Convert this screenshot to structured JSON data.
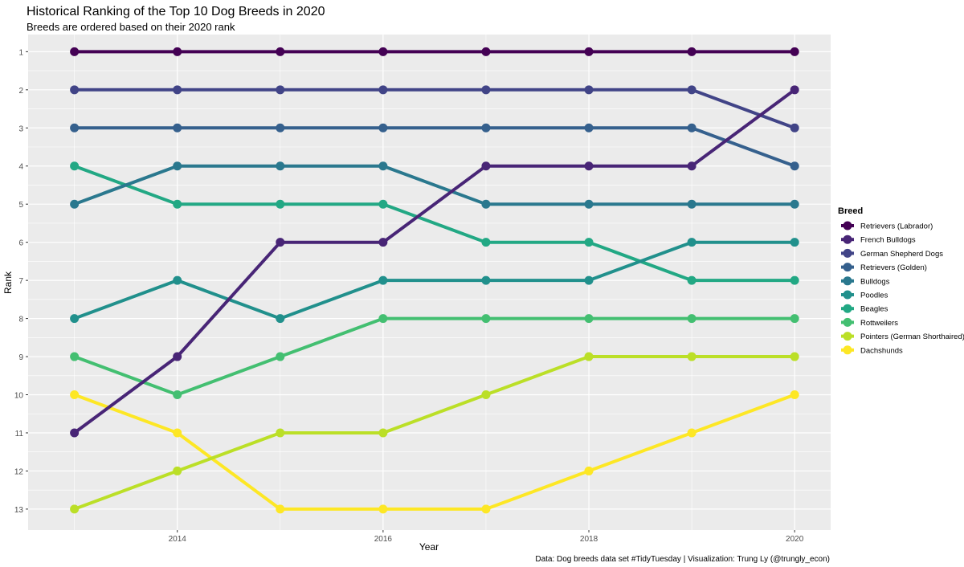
{
  "chart_data": {
    "type": "line",
    "title": "Historical Ranking of the Top 10 Dog Breeds in 2020",
    "subtitle": "Breeds are ordered based on their 2020 rank",
    "xlabel": "Year",
    "ylabel": "Rank",
    "caption": "Data: Dog breeds data set #TidyTuesday | Visualization: Trung Ly (@trungly_econ)",
    "x": [
      2013,
      2014,
      2015,
      2016,
      2017,
      2018,
      2019,
      2020
    ],
    "x_ticks": [
      "2014",
      "2016",
      "2018",
      "2020"
    ],
    "y_ticks": [
      "1",
      "2",
      "3",
      "4",
      "5",
      "6",
      "7",
      "8",
      "9",
      "10",
      "11",
      "12",
      "13"
    ],
    "xlim": [
      2012.55,
      2020.35
    ],
    "ylim": [
      13.55,
      0.55
    ],
    "y_reversed": true,
    "grid": true,
    "legend_title": "Breed",
    "legend_position": "right",
    "series": [
      {
        "name": "Retrievers (Labrador)",
        "color": "#440154",
        "values": [
          1,
          1,
          1,
          1,
          1,
          1,
          1,
          1
        ]
      },
      {
        "name": "French Bulldogs",
        "color": "#482576",
        "values": [
          11,
          9,
          6,
          6,
          4,
          4,
          4,
          2
        ]
      },
      {
        "name": "German Shepherd Dogs",
        "color": "#414487",
        "values": [
          2,
          2,
          2,
          2,
          2,
          2,
          2,
          3
        ]
      },
      {
        "name": "Retrievers (Golden)",
        "color": "#35608D",
        "values": [
          3,
          3,
          3,
          3,
          3,
          3,
          3,
          4
        ]
      },
      {
        "name": "Bulldogs",
        "color": "#2A788E",
        "values": [
          5,
          4,
          4,
          4,
          5,
          5,
          5,
          5
        ]
      },
      {
        "name": "Poodles",
        "color": "#21908C",
        "values": [
          8,
          7,
          8,
          7,
          7,
          7,
          6,
          6
        ]
      },
      {
        "name": "Beagles",
        "color": "#22A884",
        "values": [
          4,
          5,
          5,
          5,
          6,
          6,
          7,
          7
        ]
      },
      {
        "name": "Rottweilers",
        "color": "#43BF71",
        "values": [
          9,
          10,
          9,
          8,
          8,
          8,
          8,
          8
        ]
      },
      {
        "name": "Pointers (German Shorthaired)",
        "color": "#BBDF27",
        "values": [
          13,
          12,
          11,
          11,
          10,
          9,
          9,
          9
        ]
      },
      {
        "name": "Dachshunds",
        "color": "#FDE725",
        "values": [
          10,
          11,
          13,
          13,
          13,
          12,
          11,
          10
        ]
      }
    ]
  }
}
